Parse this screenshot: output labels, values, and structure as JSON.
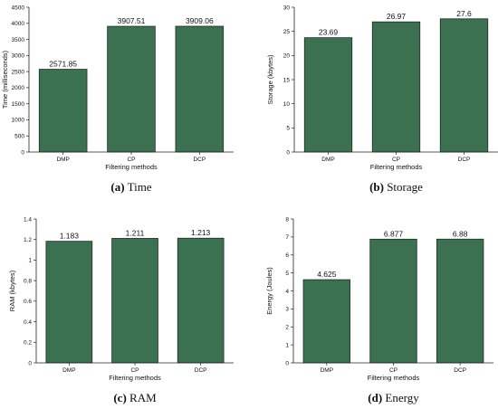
{
  "colors": {
    "bar": "#3b7050",
    "bar_stroke": "#1e2e24",
    "axis": "#222222"
  },
  "chart_data": [
    {
      "type": "bar",
      "categories": [
        "DMP",
        "CP",
        "DCP"
      ],
      "values": [
        2571.85,
        3907.51,
        3909.06
      ],
      "value_labels": [
        "2571.85",
        "3907.51",
        "3909.06"
      ],
      "xlabel": "Filtering methods",
      "ylabel": "Time (milliseconds)",
      "ylim": [
        0,
        4500
      ],
      "yticks": [
        0,
        500,
        1000,
        1500,
        2000,
        2500,
        3000,
        3500,
        4000,
        4500
      ],
      "caption_letter": "(a)",
      "caption_text": " Time",
      "grid": false
    },
    {
      "type": "bar",
      "categories": [
        "DMP",
        "CP",
        "DCP"
      ],
      "values": [
        23.69,
        26.97,
        27.6
      ],
      "value_labels": [
        "23.69",
        "26.97",
        "27.6"
      ],
      "xlabel": "Filtering methods",
      "ylabel": "Storage (kbytes)",
      "ylim": [
        0,
        30
      ],
      "yticks": [
        0,
        5,
        10,
        15,
        20,
        25,
        30
      ],
      "caption_letter": "(b)",
      "caption_text": " Storage",
      "grid": false
    },
    {
      "type": "bar",
      "categories": [
        "DMP",
        "CP",
        "DCP"
      ],
      "values": [
        1.183,
        1.211,
        1.213
      ],
      "value_labels": [
        "1.183",
        "1.211",
        "1.213"
      ],
      "xlabel": "Filtering methods",
      "ylabel": "RAM (kbytes)",
      "ylim": [
        0,
        1.4
      ],
      "yticks": [
        0,
        0.2,
        0.4,
        0.6,
        0.8,
        1,
        1.2,
        1.4
      ],
      "caption_letter": "(c)",
      "caption_text": " RAM",
      "grid": false
    },
    {
      "type": "bar",
      "categories": [
        "DMP",
        "CP",
        "DCP"
      ],
      "values": [
        4.625,
        6.877,
        6.88
      ],
      "value_labels": [
        "4.625",
        "6.877",
        "6.88"
      ],
      "xlabel": "Filtering methods",
      "ylabel": "Energy (Joules)",
      "ylim": [
        0,
        8
      ],
      "yticks": [
        0,
        1,
        2,
        3,
        4,
        5,
        6,
        7,
        8
      ],
      "caption_letter": "(d)",
      "caption_text": " Energy",
      "grid": false
    }
  ]
}
